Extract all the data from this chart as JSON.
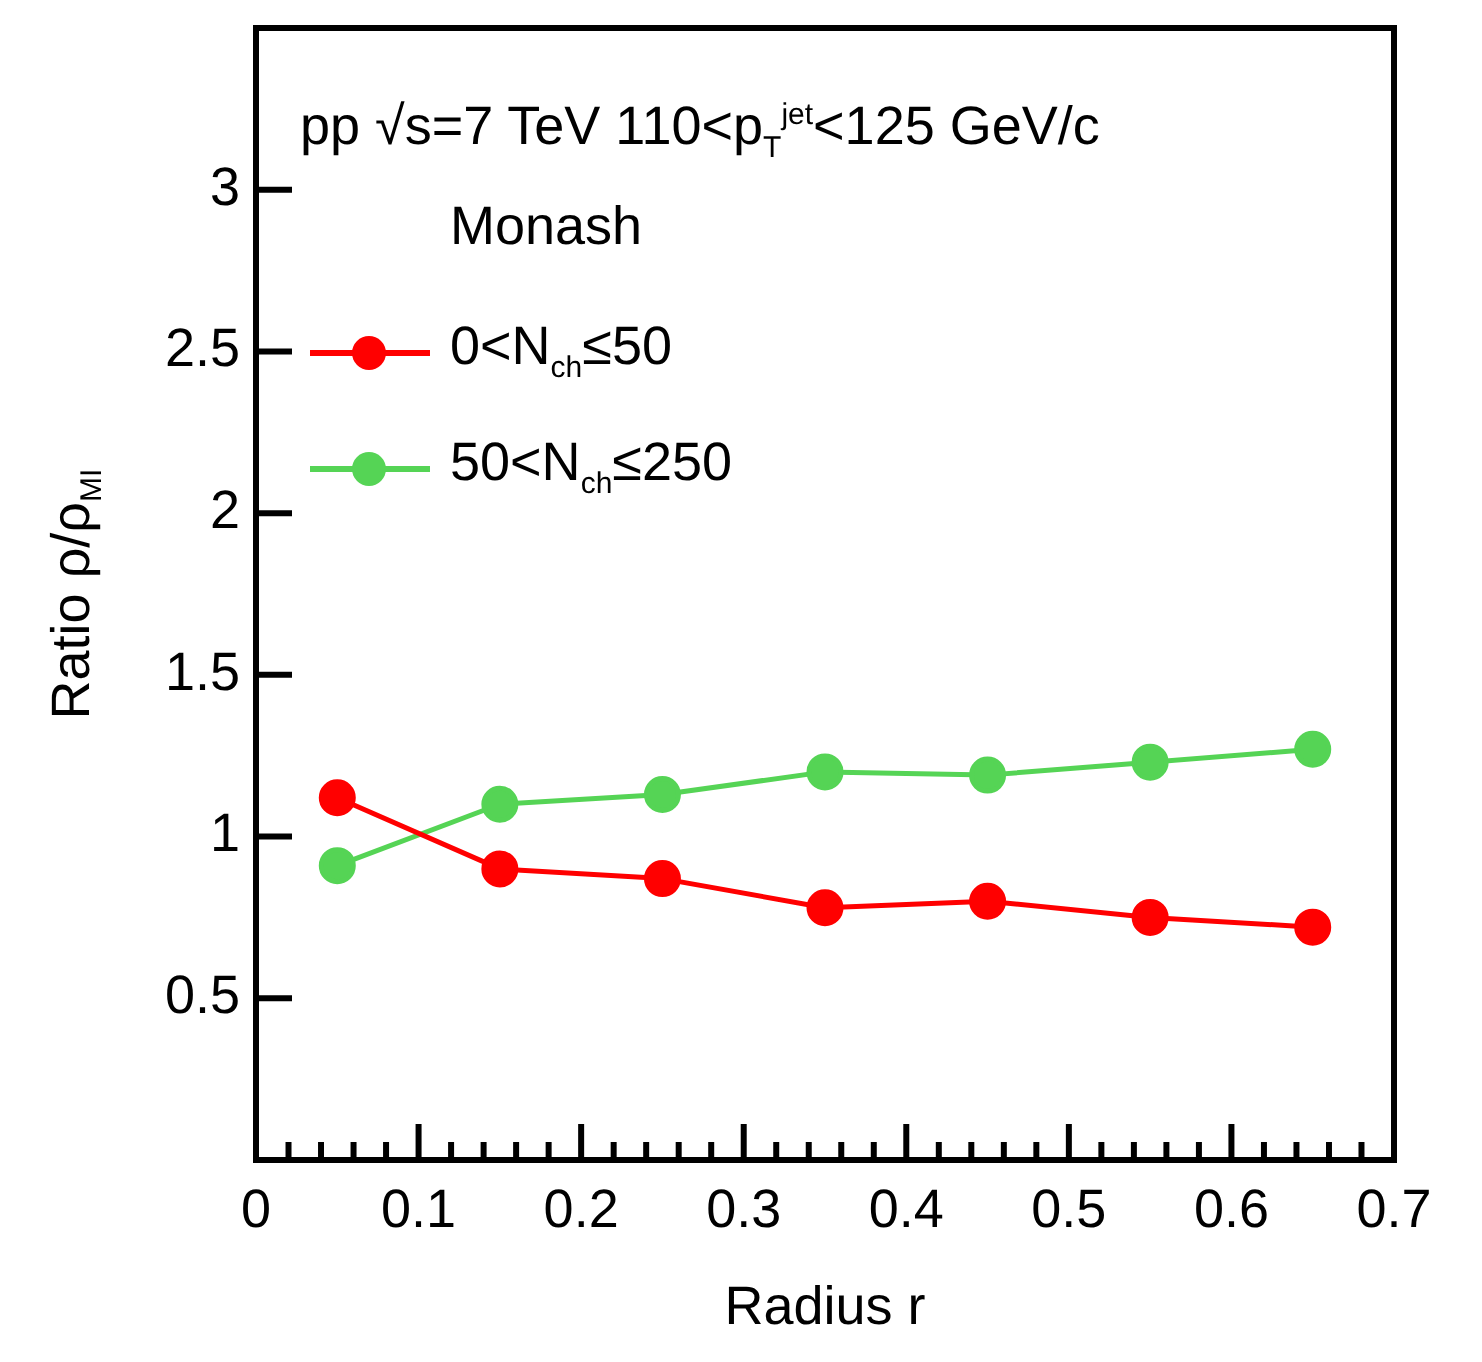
{
  "chart_data": {
    "type": "line",
    "xlabel": "Radius r",
    "ylabel": "Ratio ρ/ρ$_{MI}$",
    "annotations": [
      "pp √s=7 TeV  110<p$_{T}$$^{jet}$<125 GeV/c"
    ],
    "legend_title": "Monash",
    "legend": "top left",
    "marker": "circle",
    "grid": false,
    "x": [
      0.05,
      0.15,
      0.25,
      0.35,
      0.45,
      0.55,
      0.65
    ],
    "series": [
      {
        "name": "0<N$_{ch}$≤50",
        "color": "#ff0000",
        "values": [
          1.12,
          0.9,
          0.87,
          0.78,
          0.8,
          0.75,
          0.72
        ]
      },
      {
        "name": "50<N$_{ch}$≤250",
        "color": "#55d455",
        "values": [
          0.91,
          1.1,
          1.13,
          1.2,
          1.19,
          1.23,
          1.27
        ]
      }
    ],
    "xlim": [
      0,
      0.7
    ],
    "xticks": [
      0,
      0.1,
      0.2,
      0.3,
      0.4,
      0.5,
      0.6,
      0.7
    ],
    "ylim": [
      0,
      3.5
    ],
    "yticks": [
      0.5,
      1,
      1.5,
      2,
      2.5,
      3
    ]
  }
}
